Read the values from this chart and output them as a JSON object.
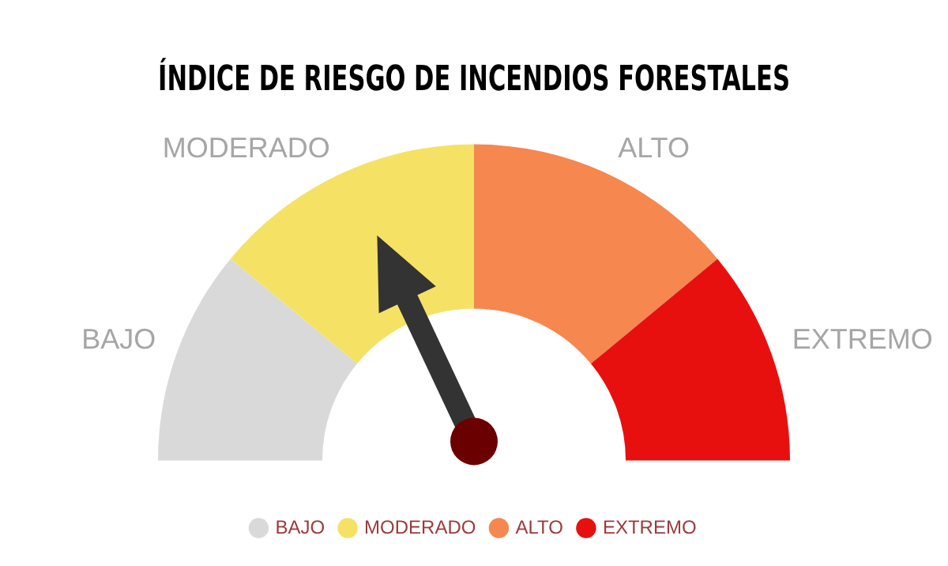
{
  "chart_data": {
    "type": "donut",
    "title": "ÍNDICE DE RIESGO DE INCENDIOS FORESTALES",
    "categories": [
      "BAJO",
      "MODERADO",
      "ALTO",
      "EXTREMO"
    ],
    "values": [
      22,
      28,
      28,
      22
    ],
    "colors": [
      "#d9d9d9",
      "#f5e265",
      "#f5874f",
      "#e8100f"
    ],
    "needle": "MODERADO",
    "legend": "bottom"
  }
}
